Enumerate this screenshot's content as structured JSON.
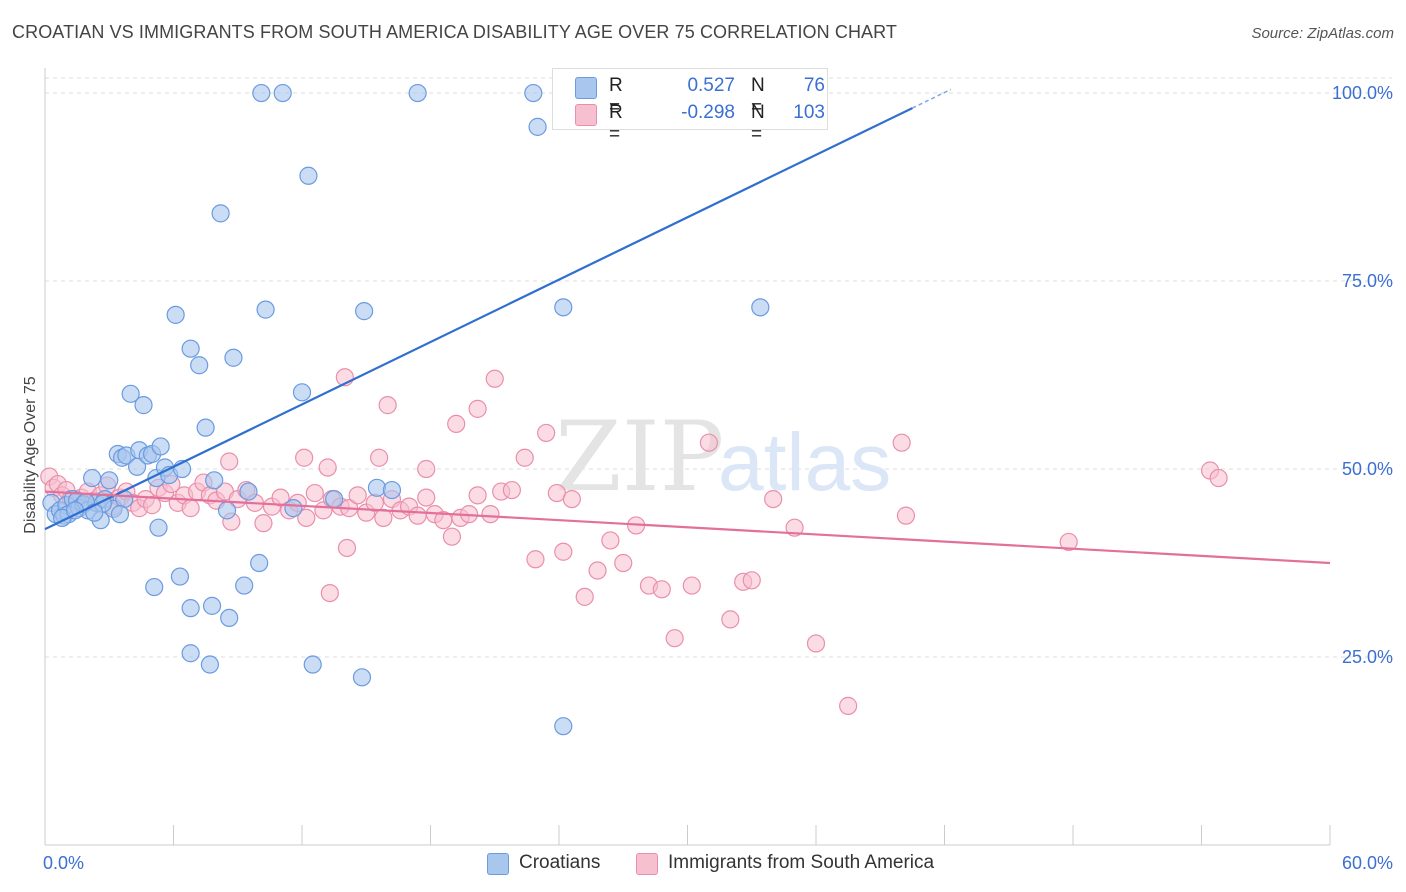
{
  "title": "CROATIAN VS IMMIGRANTS FROM SOUTH AMERICA DISABILITY AGE OVER 75 CORRELATION CHART",
  "source": "Source: ZipAtlas.com",
  "colors": {
    "blue_fill": "#a9c6ef",
    "blue_stroke": "#6a9be0",
    "blue_line": "#2f6fd0",
    "pink_fill": "#f7c0d0",
    "pink_stroke": "#ea8fab",
    "pink_line": "#e2709a",
    "axis_text": "#3b6fd1",
    "grid": "#dddddd"
  },
  "legend": {
    "rows": [
      {
        "r_label": "R =",
        "r_value": "0.527",
        "n_label": "N =",
        "n_value": "76"
      },
      {
        "r_label": "R =",
        "r_value": "-0.298",
        "n_label": "N =",
        "n_value": "103"
      }
    ]
  },
  "bottom_legend": {
    "croatians": "Croatians",
    "immigrants": "Immigrants from South America"
  },
  "chart_data": {
    "type": "scatter",
    "title": "CROATIAN VS IMMIGRANTS FROM SOUTH AMERICA DISABILITY AGE OVER 75 CORRELATION CHART",
    "xlabel": "",
    "ylabel": "Disability Age Over 75",
    "xlim": [
      0,
      60
    ],
    "ylim": [
      0,
      102
    ],
    "x_tick_labels": [
      {
        "value": 0,
        "label": "0.0%"
      },
      {
        "value": 60,
        "label": "60.0%"
      }
    ],
    "y_tick_labels": [
      {
        "value": 100,
        "label": "100.0%"
      },
      {
        "value": 75,
        "label": "75.0%"
      },
      {
        "value": 50,
        "label": "50.0%"
      },
      {
        "value": 25,
        "label": "25.0%"
      }
    ],
    "grid": "horizontal dashed",
    "watermark": "ZIPatlas",
    "series": [
      {
        "name": "Croatians",
        "trend": {
          "x0": 0,
          "y0": 42.0,
          "x1": 40.5,
          "y1": 98.0,
          "dashed_to_x": 41.5
        },
        "points": [
          [
            0.3,
            45.5
          ],
          [
            0.5,
            44.0
          ],
          [
            0.7,
            44.5
          ],
          [
            0.9,
            43.8
          ],
          [
            1.0,
            45.2
          ],
          [
            1.1,
            44.0
          ],
          [
            1.3,
            46.0
          ],
          [
            1.5,
            45.8
          ],
          [
            1.6,
            44.8
          ],
          [
            1.8,
            45.3
          ],
          [
            2.0,
            44.5
          ],
          [
            2.2,
            48.8
          ],
          [
            2.4,
            45.5
          ],
          [
            2.6,
            43.2
          ],
          [
            2.8,
            46.0
          ],
          [
            3.0,
            48.5
          ],
          [
            3.2,
            44.7
          ],
          [
            3.4,
            52.0
          ],
          [
            3.6,
            51.5
          ],
          [
            3.8,
            51.8
          ],
          [
            4.0,
            60.0
          ],
          [
            4.3,
            50.3
          ],
          [
            4.4,
            52.5
          ],
          [
            4.6,
            58.5
          ],
          [
            4.8,
            51.8
          ],
          [
            5.0,
            52.0
          ],
          [
            5.2,
            48.8
          ],
          [
            5.4,
            53.0
          ],
          [
            5.6,
            50.2
          ],
          [
            5.8,
            49.2
          ],
          [
            6.1,
            70.5
          ],
          [
            6.4,
            50.0
          ],
          [
            6.8,
            66.0
          ],
          [
            7.2,
            63.8
          ],
          [
            7.5,
            55.5
          ],
          [
            7.9,
            48.5
          ],
          [
            8.2,
            84.0
          ],
          [
            8.5,
            44.5
          ],
          [
            8.8,
            64.8
          ],
          [
            9.3,
            34.5
          ],
          [
            9.5,
            47.0
          ],
          [
            10.0,
            37.5
          ],
          [
            10.3,
            71.2
          ],
          [
            11.6,
            44.8
          ],
          [
            12.0,
            60.2
          ],
          [
            12.3,
            89.0
          ],
          [
            12.5,
            24.0
          ],
          [
            13.5,
            46.0
          ],
          [
            14.8,
            22.3
          ],
          [
            14.9,
            71.0
          ],
          [
            15.5,
            47.5
          ],
          [
            16.2,
            47.2
          ],
          [
            17.4,
            100.0
          ],
          [
            11.1,
            100.0
          ],
          [
            10.1,
            100.0
          ],
          [
            22.8,
            100.0
          ],
          [
            23.0,
            95.5
          ],
          [
            24.2,
            15.8
          ],
          [
            24.3,
            100.0
          ],
          [
            24.2,
            71.5
          ],
          [
            33.4,
            71.5
          ],
          [
            6.8,
            25.5
          ],
          [
            7.7,
            24.0
          ],
          [
            7.8,
            31.8
          ],
          [
            8.6,
            30.2
          ],
          [
            6.8,
            31.5
          ],
          [
            6.3,
            35.7
          ],
          [
            5.1,
            34.3
          ],
          [
            5.3,
            42.2
          ],
          [
            3.7,
            46.0
          ],
          [
            2.7,
            45.4
          ],
          [
            1.9,
            45.6
          ],
          [
            0.8,
            43.5
          ],
          [
            1.4,
            44.5
          ],
          [
            2.3,
            44.2
          ],
          [
            3.5,
            44.0
          ]
        ]
      },
      {
        "name": "Immigrants from South America",
        "trend": {
          "x0": 0,
          "y0": 47.0,
          "x1": 60,
          "y1": 37.5
        },
        "points": [
          [
            0.2,
            49.0
          ],
          [
            0.4,
            47.5
          ],
          [
            0.6,
            48.0
          ],
          [
            0.8,
            46.5
          ],
          [
            1.0,
            47.2
          ],
          [
            1.2,
            46.0
          ],
          [
            1.4,
            45.5
          ],
          [
            1.7,
            46.2
          ],
          [
            2.0,
            47.0
          ],
          [
            2.3,
            45.8
          ],
          [
            2.6,
            46.5
          ],
          [
            2.9,
            47.8
          ],
          [
            3.2,
            45.0
          ],
          [
            3.5,
            46.2
          ],
          [
            3.8,
            47.0
          ],
          [
            4.1,
            45.5
          ],
          [
            4.4,
            44.8
          ],
          [
            4.7,
            46.0
          ],
          [
            5.0,
            45.2
          ],
          [
            5.3,
            47.5
          ],
          [
            5.6,
            46.8
          ],
          [
            5.9,
            48.0
          ],
          [
            6.2,
            45.5
          ],
          [
            6.5,
            46.5
          ],
          [
            6.8,
            44.8
          ],
          [
            7.1,
            47.0
          ],
          [
            7.4,
            48.2
          ],
          [
            7.7,
            46.5
          ],
          [
            8.0,
            45.8
          ],
          [
            8.4,
            47.0
          ],
          [
            8.7,
            43.0
          ],
          [
            9.0,
            46.0
          ],
          [
            9.4,
            47.2
          ],
          [
            9.8,
            45.5
          ],
          [
            10.2,
            42.8
          ],
          [
            10.6,
            45.0
          ],
          [
            11.0,
            46.2
          ],
          [
            11.4,
            44.5
          ],
          [
            11.8,
            45.5
          ],
          [
            12.2,
            43.5
          ],
          [
            12.6,
            46.8
          ],
          [
            13.0,
            44.5
          ],
          [
            13.4,
            46.0
          ],
          [
            13.8,
            45.0
          ],
          [
            14.2,
            44.8
          ],
          [
            14.6,
            46.5
          ],
          [
            15.0,
            44.2
          ],
          [
            15.4,
            45.5
          ],
          [
            15.8,
            43.5
          ],
          [
            16.2,
            46.0
          ],
          [
            16.6,
            44.5
          ],
          [
            17.0,
            45.0
          ],
          [
            17.4,
            43.8
          ],
          [
            17.8,
            46.2
          ],
          [
            18.2,
            44.0
          ],
          [
            18.6,
            43.2
          ],
          [
            19.0,
            41.0
          ],
          [
            19.4,
            43.5
          ],
          [
            19.8,
            44.0
          ],
          [
            20.2,
            46.5
          ],
          [
            20.8,
            44.0
          ],
          [
            21.3,
            47.0
          ],
          [
            21.8,
            47.2
          ],
          [
            22.4,
            51.5
          ],
          [
            22.9,
            38.0
          ],
          [
            23.4,
            54.8
          ],
          [
            23.9,
            46.8
          ],
          [
            24.2,
            39.0
          ],
          [
            24.6,
            46.0
          ],
          [
            25.2,
            33.0
          ],
          [
            25.8,
            36.5
          ],
          [
            26.4,
            40.5
          ],
          [
            27.0,
            37.5
          ],
          [
            27.6,
            42.5
          ],
          [
            28.2,
            34.5
          ],
          [
            28.8,
            34.0
          ],
          [
            29.4,
            27.5
          ],
          [
            30.2,
            34.5
          ],
          [
            31.0,
            53.5
          ],
          [
            32.0,
            30.0
          ],
          [
            32.6,
            35.0
          ],
          [
            33.0,
            35.2
          ],
          [
            34.0,
            46.0
          ],
          [
            35.0,
            42.2
          ],
          [
            36.0,
            26.8
          ],
          [
            37.5,
            18.5
          ],
          [
            40.0,
            53.5
          ],
          [
            40.2,
            43.8
          ],
          [
            47.8,
            40.3
          ],
          [
            54.4,
            49.8
          ],
          [
            54.8,
            48.8
          ],
          [
            14.0,
            62.2
          ],
          [
            15.6,
            51.5
          ],
          [
            16.0,
            58.5
          ],
          [
            17.8,
            50.0
          ],
          [
            19.2,
            56.0
          ],
          [
            20.2,
            58.0
          ],
          [
            21.0,
            62.0
          ],
          [
            12.1,
            51.5
          ],
          [
            13.2,
            50.2
          ],
          [
            8.6,
            51.0
          ],
          [
            13.3,
            33.5
          ],
          [
            14.1,
            39.5
          ]
        ]
      }
    ]
  }
}
